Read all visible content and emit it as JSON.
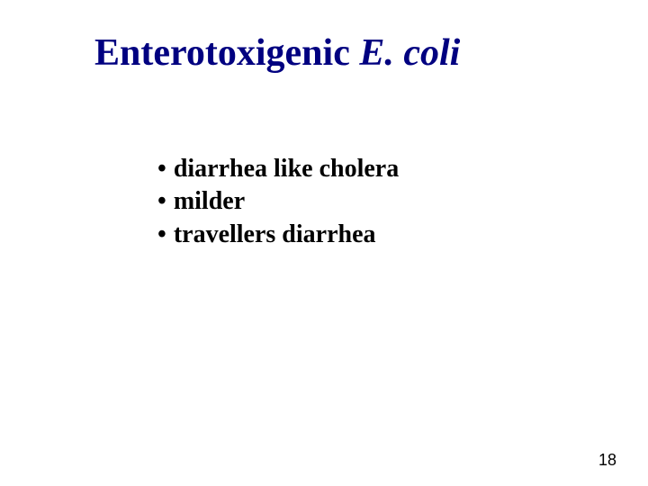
{
  "title": {
    "prefix": "Enterotoxigenic ",
    "italic": "E. coli",
    "color": "#000080",
    "fontsize": 42
  },
  "bullets": {
    "item1": "diarrhea like cholera",
    "item2": "milder",
    "item3": "travellers diarrhea",
    "marker": "•",
    "color": "#000000",
    "fontsize": 28
  },
  "page_number": "18",
  "background_color": "#ffffff"
}
